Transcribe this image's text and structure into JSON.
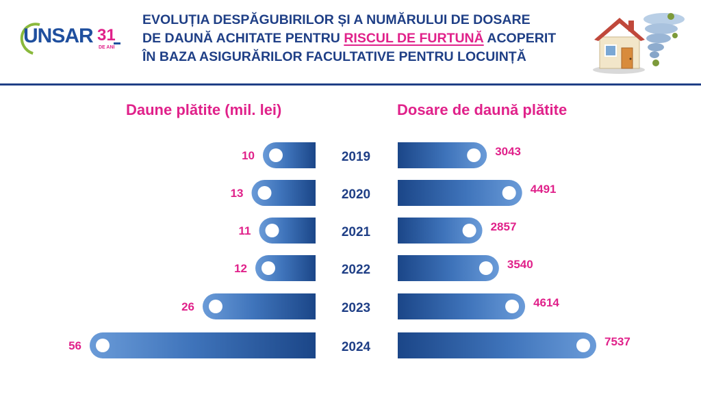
{
  "brand": {
    "logo_text": "UNSAR",
    "anniversary": "31",
    "anniversary_sub": "DE ANI"
  },
  "header": {
    "title_line1": "EVOLUȚIA DESPĂGUBIRILOR ȘI A NUMĂRULUI DE DOSARE",
    "title_line2_pre": "DE DAUNĂ ACHITATE PENTRU ",
    "title_line2_highlight": "RISCUL DE FURTUNĂ",
    "title_line2_post": " ACOPERIT",
    "title_line3": "ÎN BAZA ASIGURĂRILOR FACULTATIVE PENTRU LOCUINȚĂ",
    "illustration": "house-tornado-icon"
  },
  "colors": {
    "accent": "#e0218a",
    "bar_dark": "#1d4a8f",
    "bar_light": "#5b8fd0",
    "text_dark": "#1f3f86"
  },
  "chart_data": [
    {
      "type": "bar",
      "orientation": "horizontal",
      "direction": "right-to-left",
      "title": "Daune plătite (mil. lei)",
      "categories": [
        "2019",
        "2020",
        "2021",
        "2022",
        "2023",
        "2024"
      ],
      "values": [
        10,
        13,
        11,
        12,
        26,
        56
      ],
      "xlim": [
        0,
        56
      ]
    },
    {
      "type": "bar",
      "orientation": "horizontal",
      "direction": "left-to-right",
      "title": "Dosare de daună plătite",
      "categories": [
        "2019",
        "2020",
        "2021",
        "2022",
        "2023",
        "2024"
      ],
      "values": [
        3043,
        4491,
        2857,
        3540,
        4614,
        7537
      ],
      "xlim": [
        0,
        7537
      ]
    }
  ]
}
